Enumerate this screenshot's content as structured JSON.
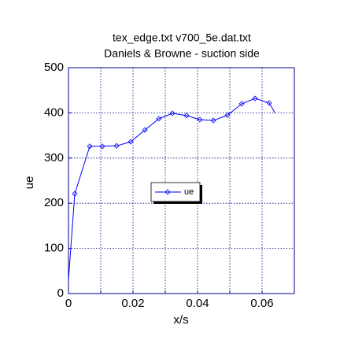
{
  "chart_data": {
    "type": "line",
    "title": [
      "tex_edge.txt   v700_5e.dat.txt",
      "Daniels & Browne - suction side"
    ],
    "x_label": "x/s",
    "y_label": "ue",
    "xlim": [
      0,
      0.07
    ],
    "ylim": [
      0,
      500
    ],
    "xticks": [
      0,
      0.02,
      0.04,
      0.06
    ],
    "xminor": [
      0.01,
      0.03,
      0.05
    ],
    "yticks": [
      0,
      100,
      200,
      300,
      400,
      500
    ],
    "grid": true,
    "legend": "center",
    "series": [
      {
        "name": "ue",
        "color": "#0000ff",
        "x": [
          0,
          0.00195,
          0.0066,
          0.0105,
          0.0149,
          0.0193,
          0.0237,
          0.028,
          0.0322,
          0.0366,
          0.0407,
          0.0449,
          0.0493,
          0.0537,
          0.0578,
          0.0622,
          0.064
        ],
        "values": [
          30,
          221,
          326,
          326,
          327,
          336,
          362,
          387,
          399,
          394,
          385,
          383,
          395,
          420,
          432,
          422,
          400
        ]
      }
    ]
  }
}
